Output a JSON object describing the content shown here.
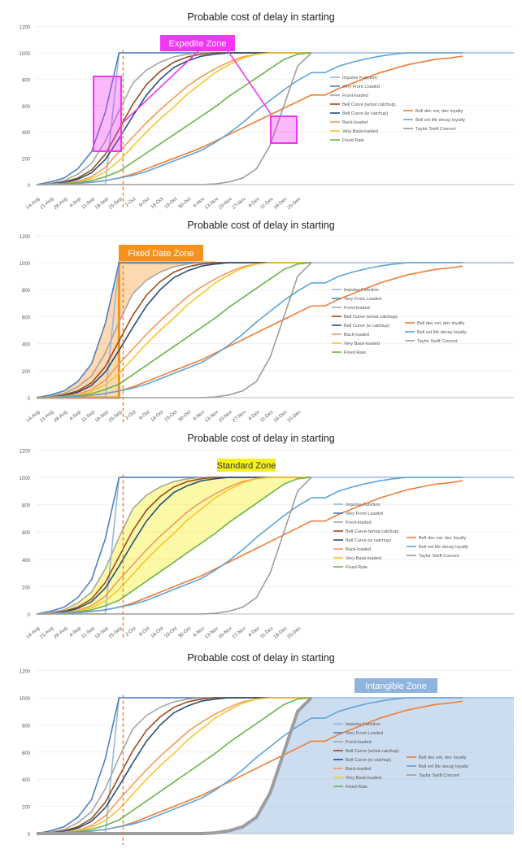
{
  "chart_data": [
    {
      "type": "line",
      "title": "Probable cost of delay in starting",
      "zone_label": "Expedite Zone",
      "zone_color": "#f236f2",
      "ylim": [
        0,
        1200
      ],
      "yticks": [
        "0",
        "200",
        "400",
        "600",
        "800",
        "1000",
        "1200"
      ],
      "xticks": [
        "14-Aug",
        "21-Aug",
        "28-Aug",
        "4-Sep",
        "11-Sep",
        "18-Sep",
        "25-Sep",
        "2-Oct",
        "9-Oct",
        "16-Oct",
        "23-Oct",
        "30-Oct",
        "6-Nov",
        "13-Nov",
        "20-Nov",
        "27-Nov",
        "4-Dec",
        "11-Dec",
        "18-Dec",
        "25-Dec"
      ]
    },
    {
      "type": "line",
      "title": "Probable cost of delay in starting",
      "zone_label": "Fixed Date Zone",
      "zone_color": "#f5921e",
      "ylim": [
        0,
        1200
      ],
      "yticks": [
        "0",
        "200",
        "400",
        "600",
        "800",
        "1000",
        "1200"
      ],
      "xticks": [
        "14-Aug",
        "21-Aug",
        "28-Aug",
        "4-Sep",
        "11-Sep",
        "18-Sep",
        "25-Sep",
        "2-Oct",
        "9-Oct",
        "16-Oct",
        "23-Oct",
        "30-Oct",
        "6-Nov",
        "13-Nov",
        "20-Nov",
        "27-Nov",
        "4-Dec",
        "11-Dec",
        "18-Dec",
        "25-Dec"
      ]
    },
    {
      "type": "line",
      "title": "Probable cost of delay in starting",
      "zone_label": "Standard Zone",
      "zone_color": "#f5f01e",
      "ylim": [
        0,
        1200
      ],
      "yticks": [
        "0",
        "200",
        "400",
        "600",
        "800",
        "1000",
        "1200"
      ],
      "xticks": [
        "14-Aug",
        "21-Aug",
        "28-Aug",
        "4-Sep",
        "11-Sep",
        "18-Sep",
        "25-Sep",
        "2-Oct",
        "9-Oct",
        "16-Oct",
        "23-Oct",
        "30-Oct",
        "6-Nov",
        "13-Nov",
        "20-Nov",
        "27-Nov",
        "4-Dec",
        "11-Dec",
        "18-Dec",
        "25-Dec"
      ]
    },
    {
      "type": "line",
      "title": "Probable cost of delay in starting",
      "zone_label": "Intangible Zone",
      "zone_color": "#8fb4de",
      "ylim": [
        0,
        1200
      ],
      "yticks": [
        "0",
        "200",
        "400",
        "600",
        "800",
        "1000",
        "1200"
      ],
      "xticks": [
        "Aug",
        "Aug",
        "Aug",
        "Sep",
        "Sep",
        "Sep",
        "Sep",
        "Oct",
        "Oct",
        "Oct",
        "Oct",
        "Oct",
        "Nov",
        "Nov",
        "Nov",
        "Nov",
        "Dec",
        "Dec",
        "Dec",
        "Dec"
      ]
    }
  ],
  "series": [
    {
      "name": "Impulse Function",
      "color": "#9ab7de",
      "values": [
        0,
        0,
        0,
        0,
        0,
        0,
        1000,
        1000,
        1000,
        1000,
        1000,
        1000,
        1000,
        1000,
        1000,
        1000,
        1000,
        1000,
        1000,
        1000,
        1000,
        1000,
        1000,
        1000,
        1000,
        1000,
        1000,
        1000,
        1000,
        1000,
        1000,
        1000,
        1000,
        1000,
        1000,
        1000,
        1000,
        1000,
        1000,
        1000,
        1000,
        1000,
        1000,
        1000,
        1000,
        1000,
        1000,
        1000,
        1000,
        1000,
        1000,
        1000,
        1000,
        1000,
        1000,
        1000,
        1000,
        1000,
        1000,
        1000,
        1000,
        1000,
        1000,
        1000,
        1000,
        1000,
        1000
      ]
    },
    {
      "name": "Very Front Loaded",
      "color": "#4f7fc4",
      "values": [
        0,
        20,
        50,
        120,
        250,
        550,
        1000,
        1000,
        1000,
        1000,
        1000,
        1000,
        1000,
        1000,
        1000,
        1000,
        1000,
        1000,
        1000,
        1000,
        1000
      ]
    },
    {
      "name": "Front-loaded",
      "color": "#a5a5a5",
      "values": [
        0,
        10,
        30,
        80,
        160,
        330,
        560,
        770,
        870,
        930,
        970,
        990,
        1000,
        1000,
        1000,
        1000,
        1000,
        1000,
        1000,
        1000,
        1000
      ]
    },
    {
      "name": "Bell Curve (w/out catchup)",
      "color": "#9c4a1e",
      "values": [
        0,
        5,
        20,
        50,
        110,
        230,
        420,
        610,
        760,
        860,
        930,
        970,
        990,
        1000,
        1000,
        1000,
        1000,
        1000,
        1000,
        1000,
        1000
      ]
    },
    {
      "name": "Bell Curve (w catchup)",
      "color": "#264f7a",
      "values": [
        0,
        5,
        15,
        40,
        90,
        190,
        350,
        520,
        680,
        800,
        890,
        940,
        975,
        990,
        1000,
        1000,
        1000,
        1000,
        1000,
        1000,
        1000
      ]
    },
    {
      "name": "Back-loaded",
      "color": "#f29a5c",
      "values": [
        0,
        5,
        10,
        25,
        60,
        130,
        250,
        360,
        470,
        570,
        660,
        750,
        820,
        880,
        930,
        970,
        990,
        1000,
        1000,
        1000,
        1000
      ]
    },
    {
      "name": "Very Back-loaded",
      "color": "#f7c531",
      "values": [
        0,
        2,
        8,
        20,
        45,
        95,
        180,
        290,
        400,
        500,
        590,
        690,
        770,
        850,
        910,
        960,
        990,
        1000,
        1000,
        1000,
        1000
      ]
    },
    {
      "name": "Fixed Rate",
      "color": "#6bb54a",
      "values": [
        0,
        3,
        8,
        15,
        30,
        60,
        100,
        170,
        240,
        310,
        380,
        450,
        520,
        590,
        670,
        740,
        810,
        880,
        950,
        990,
        1000
      ]
    },
    {
      "name": "Bell dec ext, dec loyalty",
      "color": "#ef7d35",
      "values": [
        0,
        2,
        5,
        10,
        18,
        30,
        50,
        80,
        120,
        160,
        200,
        240,
        280,
        330,
        380,
        430,
        480,
        530,
        580,
        630,
        680
      ]
    },
    {
      "name": "Bell ext life decay loyalty",
      "color": "#5ea4d8",
      "values": [
        0,
        2,
        5,
        10,
        18,
        30,
        50,
        70,
        100,
        140,
        180,
        220,
        260,
        320,
        390,
        470,
        560,
        640,
        720,
        790,
        850
      ]
    },
    {
      "name": "Taylor Swift Concert",
      "color": "#9d9d9d",
      "values": [
        0,
        0,
        0,
        0,
        0,
        0,
        0,
        0,
        0,
        0,
        0,
        0,
        0,
        5,
        20,
        50,
        120,
        300,
        600,
        900,
        1000
      ]
    }
  ],
  "series_x_end": [
    20,
    20,
    20,
    20,
    20,
    20,
    20,
    20,
    31,
    31,
    20
  ],
  "ext_values": [
    [
      680,
      730,
      770,
      810,
      850,
      880,
      910,
      930,
      950,
      960,
      975
    ],
    [
      850,
      900,
      930,
      955,
      975,
      990,
      1000,
      1000,
      1000,
      1000,
      1000
    ]
  ]
}
